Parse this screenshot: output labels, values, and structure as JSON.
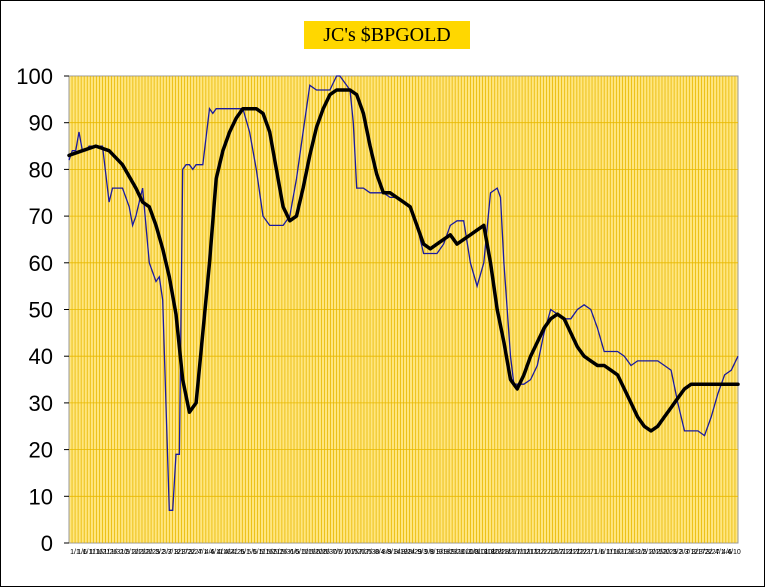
{
  "chart_data": {
    "type": "line",
    "title": "JC's $BPGOLD",
    "xlabel": "",
    "ylabel": "",
    "ylim": [
      0,
      100
    ],
    "yticks": [
      0,
      10,
      20,
      30,
      40,
      50,
      60,
      70,
      80,
      90,
      100
    ],
    "xlim": [
      0,
      100
    ],
    "x_tick_labels": [
      "1/1",
      "1/6",
      "1/11",
      "1/16",
      "1/21",
      "1/26",
      "1/31",
      "2/5",
      "2/10",
      "2/15",
      "2/20",
      "2/25",
      "3/2",
      "3/7",
      "3/12",
      "3/17",
      "3/22",
      "3/27",
      "4/1",
      "4/6",
      "4/11",
      "4/16",
      "4/21",
      "4/26",
      "5/1",
      "5/6",
      "5/11",
      "5/16",
      "5/21",
      "5/26",
      "5/31",
      "6/5",
      "6/10",
      "6/15",
      "6/20",
      "6/25",
      "6/30",
      "7/5",
      "7/10",
      "7/15",
      "7/20",
      "7/25",
      "7/30",
      "8/4",
      "8/9",
      "8/14",
      "8/19",
      "8/24",
      "8/29",
      "9/3",
      "9/8",
      "9/13",
      "9/18",
      "9/23",
      "9/28",
      "10/3",
      "10/8",
      "10/13",
      "10/18",
      "10/23",
      "10/28",
      "11/2",
      "11/7",
      "11/12",
      "11/17",
      "11/22",
      "11/27",
      "12/2",
      "12/7",
      "12/12",
      "12/17",
      "12/22",
      "12/27",
      "1/1",
      "1/6",
      "1/11",
      "1/16",
      "1/21",
      "1/26",
      "1/31",
      "2/5",
      "2/10",
      "2/15",
      "2/20",
      "2/25",
      "3/2",
      "3/7",
      "3/12",
      "3/17",
      "3/22",
      "3/27",
      "4/1",
      "4/6",
      "4/10"
    ],
    "grid": true,
    "colors": {
      "plot_bg": "#ffe680",
      "grid": "#e8b800",
      "raw": "#1a1aa0",
      "smooth": "#000000",
      "title_bg": "#ffd700"
    },
    "series": [
      {
        "style": "thin",
        "x": [
          0,
          0.5,
          1,
          1.5,
          2,
          2.5,
          3,
          4,
          5,
          6,
          6.5,
          7,
          8,
          9,
          9.5,
          10,
          10.5,
          11,
          12,
          13,
          13.5,
          14,
          15,
          15.5,
          16,
          16.5,
          17,
          17.5,
          18,
          18.5,
          19,
          19.5,
          20,
          21,
          21.5,
          22,
          22.5,
          23,
          23.5,
          24,
          24.5,
          25,
          26,
          27,
          28,
          29,
          30,
          31,
          32,
          33,
          34,
          35,
          36,
          37,
          38,
          39,
          40,
          40.5,
          41,
          41.5,
          42,
          42.5,
          43,
          44,
          45,
          46,
          47,
          48,
          49,
          50,
          51,
          52,
          53,
          54,
          55,
          56,
          57,
          58,
          59,
          60,
          61,
          62,
          63,
          64,
          64.5,
          65,
          65.5,
          66,
          66.5,
          67,
          67.5,
          68,
          69,
          70,
          71,
          72,
          73,
          74,
          75,
          76,
          77,
          78,
          79,
          80,
          81,
          82,
          83,
          84,
          85,
          86,
          87,
          88,
          89,
          90,
          91,
          92,
          93,
          94,
          95,
          96,
          97,
          98,
          99,
          100
        ],
        "y": [
          82,
          84,
          84,
          88,
          84,
          84,
          85,
          85,
          85,
          73,
          76,
          76,
          76,
          72,
          68,
          70,
          73,
          76,
          60,
          56,
          57,
          52,
          7,
          7,
          19,
          19,
          80,
          81,
          81,
          80,
          81,
          81,
          81,
          93,
          92,
          93,
          93,
          93,
          93,
          93,
          93,
          93,
          93,
          88,
          80,
          70,
          68,
          68,
          68,
          70,
          78,
          88,
          98,
          97,
          97,
          97,
          100,
          100,
          99,
          98,
          97,
          90,
          76,
          76,
          75,
          75,
          75,
          74,
          74,
          73,
          72,
          68,
          62,
          62,
          62,
          64,
          68,
          69,
          69,
          60,
          55,
          60,
          75,
          76,
          74,
          60,
          50,
          40,
          34,
          34,
          34,
          34,
          35,
          38,
          45,
          50,
          49,
          48,
          48,
          50,
          51,
          50,
          46,
          41,
          41,
          41,
          40,
          38,
          39,
          39,
          39,
          39,
          38,
          37,
          30,
          24,
          24,
          24,
          23,
          27,
          32,
          36,
          37,
          40
        ]
      },
      {
        "style": "thick",
        "x": [
          0,
          2,
          4,
          6,
          8,
          10,
          11,
          12,
          13,
          14,
          15,
          16,
          17,
          18,
          19,
          20,
          21,
          22,
          23,
          24,
          25,
          26,
          27,
          28,
          29,
          30,
          31,
          32,
          33,
          34,
          35,
          36,
          37,
          38,
          39,
          40,
          41,
          42,
          43,
          44,
          45,
          46,
          47,
          48,
          49,
          50,
          51,
          52,
          53,
          54,
          55,
          56,
          57,
          58,
          59,
          60,
          61,
          62,
          63,
          64,
          65,
          66,
          67,
          68,
          69,
          70,
          71,
          72,
          73,
          74,
          75,
          76,
          77,
          78,
          79,
          80,
          81,
          82,
          83,
          84,
          85,
          86,
          87,
          88,
          89,
          90,
          91,
          92,
          93,
          94,
          95,
          96,
          97,
          98,
          99,
          100
        ],
        "y": [
          83,
          84,
          85,
          84,
          81,
          76,
          73,
          72,
          68,
          63,
          57,
          49,
          35,
          28,
          30,
          45,
          60,
          78,
          84,
          88,
          91,
          93,
          93,
          93,
          92,
          88,
          80,
          72,
          69,
          70,
          76,
          83,
          89,
          93,
          96,
          97,
          97,
          97,
          96,
          92,
          85,
          79,
          75,
          75,
          74,
          73,
          72,
          68,
          64,
          63,
          64,
          65,
          66,
          64,
          65,
          66,
          67,
          68,
          60,
          50,
          43,
          35,
          33,
          36,
          40,
          43,
          46,
          48,
          49,
          48,
          45,
          42,
          40,
          39,
          38,
          38,
          37,
          36,
          33,
          30,
          27,
          25,
          24,
          25,
          27,
          29,
          31,
          33,
          34,
          34,
          34,
          34,
          34,
          34,
          34,
          34
        ],
        "y_note": ""
      }
    ]
  }
}
